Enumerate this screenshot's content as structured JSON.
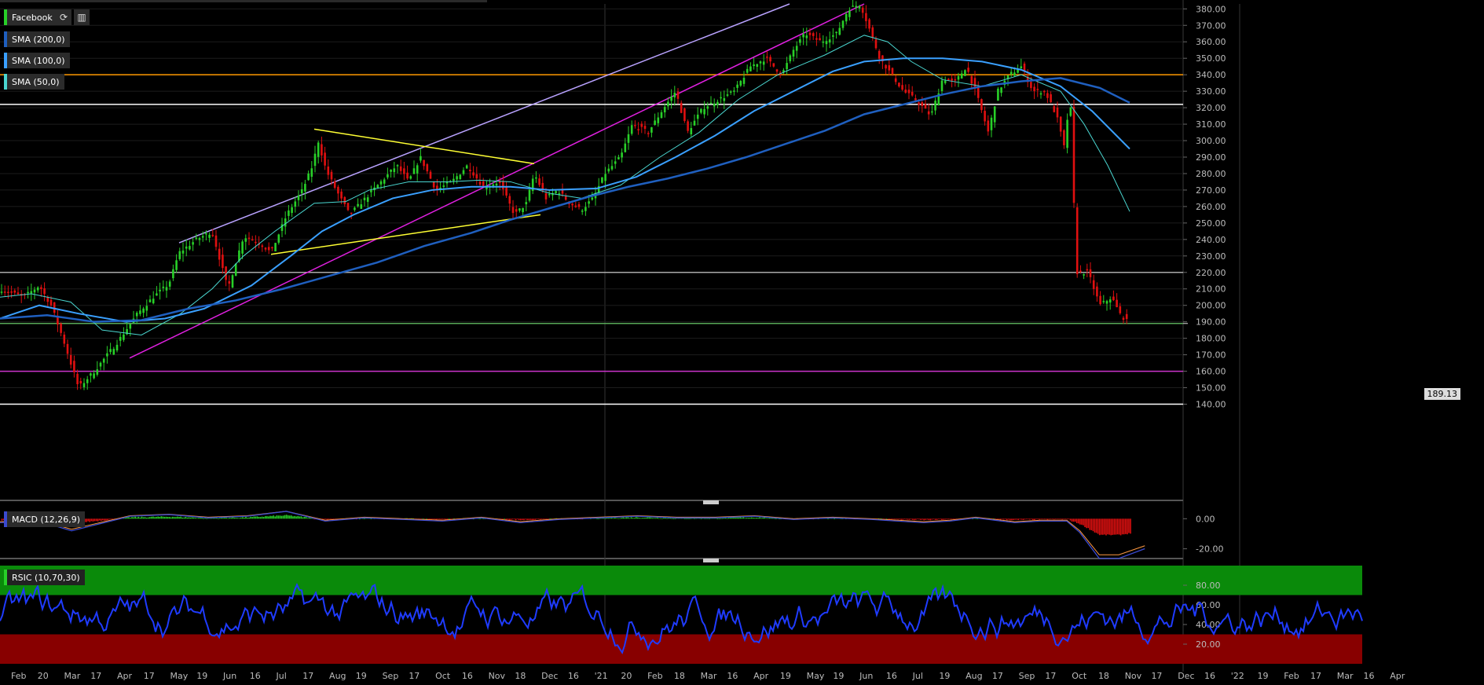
{
  "symbol": "Facebook",
  "last_price": "189.13",
  "indicators": {
    "sma200": "SMA (200,0)",
    "sma100": "SMA (100,0)",
    "sma50": "SMA (50,0)",
    "macd": "MACD (12,26,9)",
    "rsi": "RSIC (10,70,30)"
  },
  "colors": {
    "sma200": "#1f5fbf",
    "sma100": "#3aa0ff",
    "sma50": "#4ad6d0",
    "up": "#28d028",
    "down": "#e01010"
  },
  "chart_data": [
    {
      "type": "candlestick",
      "name": "price",
      "ylim": [
        135,
        383
      ],
      "y_ticks": [
        "380.00",
        "370.00",
        "360.00",
        "350.00",
        "340.00",
        "330.00",
        "320.00",
        "310.00",
        "300.00",
        "290.00",
        "280.00",
        "270.00",
        "260.00",
        "250.00",
        "240.00",
        "230.00",
        "220.00",
        "210.00",
        "200.00",
        "190.00",
        "180.00",
        "170.00",
        "160.00",
        "150.00",
        "140.00"
      ],
      "close_path": [
        [
          0,
          210
        ],
        [
          30,
          205
        ],
        [
          50,
          212
        ],
        [
          65,
          200
        ],
        [
          80,
          180
        ],
        [
          100,
          150
        ],
        [
          120,
          160
        ],
        [
          150,
          178
        ],
        [
          175,
          195
        ],
        [
          195,
          205
        ],
        [
          215,
          213
        ],
        [
          228,
          232
        ],
        [
          250,
          240
        ],
        [
          270,
          245
        ],
        [
          290,
          210
        ],
        [
          310,
          242
        ],
        [
          330,
          238
        ],
        [
          345,
          232
        ],
        [
          365,
          255
        ],
        [
          385,
          270
        ],
        [
          398,
          285
        ],
        [
          405,
          300
        ],
        [
          415,
          282
        ],
        [
          430,
          268
        ],
        [
          445,
          255
        ],
        [
          465,
          265
        ],
        [
          485,
          275
        ],
        [
          505,
          285
        ],
        [
          520,
          275
        ],
        [
          535,
          290
        ],
        [
          555,
          270
        ],
        [
          575,
          275
        ],
        [
          595,
          285
        ],
        [
          615,
          272
        ],
        [
          635,
          275
        ],
        [
          655,
          255
        ],
        [
          670,
          262
        ],
        [
          680,
          280
        ],
        [
          695,
          265
        ],
        [
          710,
          270
        ],
        [
          725,
          262
        ],
        [
          740,
          258
        ],
        [
          755,
          265
        ],
        [
          770,
          280
        ],
        [
          790,
          290
        ],
        [
          805,
          310
        ],
        [
          825,
          305
        ],
        [
          845,
          320
        ],
        [
          860,
          330
        ],
        [
          875,
          305
        ],
        [
          895,
          320
        ],
        [
          915,
          325
        ],
        [
          935,
          330
        ],
        [
          955,
          345
        ],
        [
          975,
          350
        ],
        [
          995,
          340
        ],
        [
          1010,
          355
        ],
        [
          1025,
          365
        ],
        [
          1045,
          360
        ],
        [
          1065,
          365
        ],
        [
          1080,
          380
        ],
        [
          1095,
          383
        ],
        [
          1105,
          370
        ],
        [
          1120,
          350
        ],
        [
          1135,
          340
        ],
        [
          1150,
          330
        ],
        [
          1165,
          325
        ],
        [
          1185,
          315
        ],
        [
          1200,
          338
        ],
        [
          1215,
          335
        ],
        [
          1230,
          345
        ],
        [
          1245,
          325
        ],
        [
          1258,
          305
        ],
        [
          1270,
          330
        ],
        [
          1285,
          340
        ],
        [
          1300,
          345
        ],
        [
          1315,
          330
        ],
        [
          1330,
          330
        ],
        [
          1345,
          315
        ],
        [
          1355,
          295
        ],
        [
          1362,
          330
        ],
        [
          1370,
          220
        ],
        [
          1385,
          220
        ],
        [
          1400,
          200
        ],
        [
          1415,
          205
        ],
        [
          1425,
          195
        ],
        [
          1437,
          189
        ]
      ],
      "hlines": [
        {
          "y": 340,
          "color": "#ff9900"
        },
        {
          "y": 322,
          "color": "#ffffff"
        },
        {
          "y": 220,
          "color": "#aaaaaa"
        },
        {
          "y": 189,
          "color": "#58a858"
        },
        {
          "y": 160,
          "color": "#cc33cc"
        },
        {
          "y": 140,
          "color": "#ffffff"
        }
      ],
      "trendlines": [
        {
          "from": [
            228,
            238
          ],
          "to": [
            1005,
            383
          ],
          "color": "#b9a2ff"
        },
        {
          "from": [
            165,
            168
          ],
          "to": [
            1100,
            383
          ],
          "color": "#e020e0"
        },
        {
          "from": [
            400,
            307
          ],
          "to": [
            680,
            286
          ],
          "color": "#ffff33"
        },
        {
          "from": [
            345,
            231
          ],
          "to": [
            688,
            255
          ],
          "color": "#ffff33"
        }
      ],
      "sma50_path": [
        [
          0,
          205
        ],
        [
          40,
          207
        ],
        [
          90,
          202
        ],
        [
          130,
          185
        ],
        [
          180,
          182
        ],
        [
          230,
          195
        ],
        [
          270,
          210
        ],
        [
          310,
          230
        ],
        [
          350,
          245
        ],
        [
          400,
          262
        ],
        [
          440,
          263
        ],
        [
          470,
          270
        ],
        [
          520,
          275
        ],
        [
          570,
          275
        ],
        [
          610,
          276
        ],
        [
          650,
          275
        ],
        [
          700,
          268
        ],
        [
          740,
          265
        ],
        [
          790,
          273
        ],
        [
          840,
          290
        ],
        [
          890,
          305
        ],
        [
          940,
          325
        ],
        [
          990,
          340
        ],
        [
          1050,
          352
        ],
        [
          1100,
          364
        ],
        [
          1130,
          360
        ],
        [
          1160,
          348
        ],
        [
          1200,
          337
        ],
        [
          1250,
          333
        ],
        [
          1300,
          340
        ],
        [
          1350,
          330
        ],
        [
          1380,
          310
        ],
        [
          1410,
          285
        ],
        [
          1438,
          257
        ]
      ],
      "sma100_path": [
        [
          0,
          192
        ],
        [
          50,
          200
        ],
        [
          100,
          195
        ],
        [
          160,
          190
        ],
        [
          210,
          192
        ],
        [
          260,
          198
        ],
        [
          320,
          212
        ],
        [
          370,
          230
        ],
        [
          410,
          245
        ],
        [
          450,
          255
        ],
        [
          500,
          265
        ],
        [
          550,
          270
        ],
        [
          600,
          272
        ],
        [
          650,
          272
        ],
        [
          700,
          270
        ],
        [
          760,
          271
        ],
        [
          810,
          278
        ],
        [
          860,
          290
        ],
        [
          910,
          303
        ],
        [
          960,
          318
        ],
        [
          1010,
          330
        ],
        [
          1060,
          342
        ],
        [
          1100,
          348
        ],
        [
          1150,
          350
        ],
        [
          1200,
          350
        ],
        [
          1250,
          348
        ],
        [
          1300,
          343
        ],
        [
          1350,
          333
        ],
        [
          1390,
          318
        ],
        [
          1438,
          295
        ]
      ],
      "sma200_path": [
        [
          0,
          192
        ],
        [
          60,
          194
        ],
        [
          120,
          190
        ],
        [
          180,
          191
        ],
        [
          240,
          198
        ],
        [
          300,
          203
        ],
        [
          360,
          210
        ],
        [
          420,
          218
        ],
        [
          480,
          226
        ],
        [
          540,
          236
        ],
        [
          600,
          244
        ],
        [
          650,
          252
        ],
        [
          700,
          259
        ],
        [
          750,
          266
        ],
        [
          800,
          272
        ],
        [
          850,
          277
        ],
        [
          900,
          283
        ],
        [
          950,
          290
        ],
        [
          1000,
          298
        ],
        [
          1050,
          306
        ],
        [
          1100,
          316
        ],
        [
          1150,
          322
        ],
        [
          1200,
          328
        ],
        [
          1250,
          333
        ],
        [
          1300,
          336
        ],
        [
          1350,
          338
        ],
        [
          1400,
          332
        ],
        [
          1438,
          323
        ]
      ]
    },
    {
      "type": "bar",
      "name": "macd",
      "ylim": [
        -27,
        8
      ],
      "y_ticks": [
        "0.00",
        "-20.00"
      ]
    },
    {
      "type": "line",
      "name": "rsi",
      "ylim": [
        0,
        100
      ],
      "overbought": 70,
      "oversold": 30,
      "y_ticks": [
        "80.00",
        "60.00",
        "40.00",
        "20.00"
      ]
    }
  ],
  "x_labels": [
    "Feb",
    "20",
    "Mar",
    "17",
    "Apr",
    "17",
    "May",
    "19",
    "Jun",
    "16",
    "Jul",
    "17",
    "Aug",
    "19",
    "Sep",
    "17",
    "Oct",
    "16",
    "Nov",
    "18",
    "Dec",
    "16",
    "'21",
    "20",
    "Feb",
    "18",
    "Mar",
    "16",
    "Apr",
    "19",
    "May",
    "19",
    "Jun",
    "16",
    "Jul",
    "19",
    "Aug",
    "17",
    "Sep",
    "17",
    "Oct",
    "18",
    "Nov",
    "17",
    "Dec",
    "16",
    "'22",
    "19",
    "Feb",
    "17",
    "Mar",
    "16",
    "Apr"
  ]
}
